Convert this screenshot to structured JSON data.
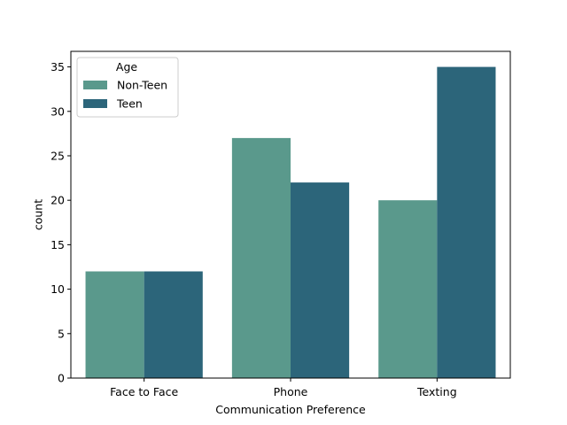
{
  "chart_data": {
    "type": "bar",
    "categories": [
      "Face to Face",
      "Phone",
      "Texting"
    ],
    "series": [
      {
        "name": "Non-Teen",
        "values": [
          12,
          27,
          20
        ],
        "color": "#5a998c"
      },
      {
        "name": "Teen",
        "values": [
          12,
          22,
          35
        ],
        "color": "#2c657a"
      }
    ],
    "xlabel": "Communication Preference",
    "ylabel": "count",
    "ylim": [
      0,
      36.75
    ],
    "yticks": [
      0,
      5,
      10,
      15,
      20,
      25,
      30,
      35
    ],
    "legend": {
      "title": "Age",
      "placement": "top-left"
    },
    "grid": false
  }
}
